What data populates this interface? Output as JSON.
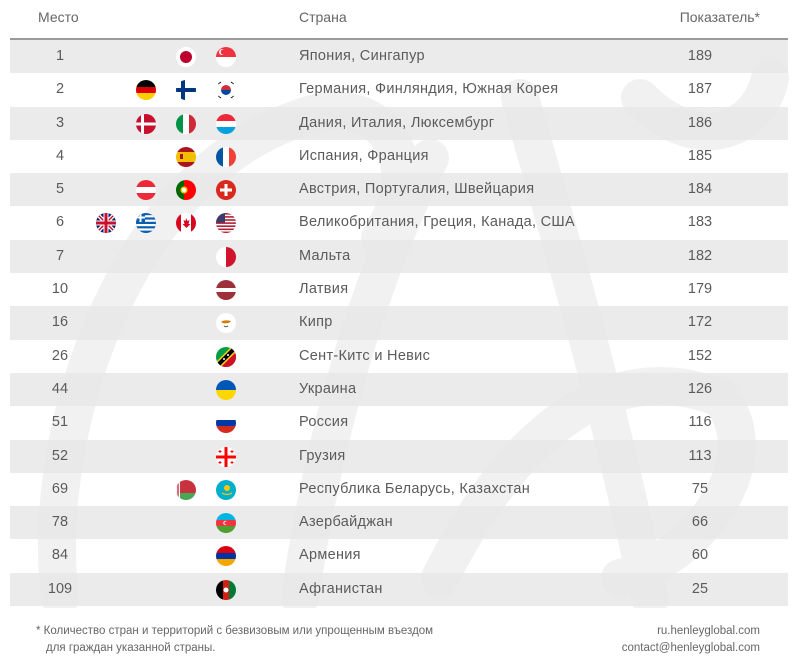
{
  "header": {
    "rank": "Место",
    "country": "Страна",
    "score": "Показатель*"
  },
  "rows": [
    {
      "rank": "1",
      "country": "Япония, Сингапур",
      "score": "189",
      "flags": [
        "japan-flag",
        "singapore-flag"
      ]
    },
    {
      "rank": "2",
      "country": "Германия, Финляндия, Южная Корея",
      "score": "187",
      "flags": [
        "germany-flag",
        "finland-flag",
        "south-korea-flag"
      ]
    },
    {
      "rank": "3",
      "country": "Дания, Италия, Люксембург",
      "score": "186",
      "flags": [
        "denmark-flag",
        "italy-flag",
        "luxembourg-flag"
      ]
    },
    {
      "rank": "4",
      "country": "Испания, Франция",
      "score": "185",
      "flags": [
        "spain-flag",
        "france-flag"
      ]
    },
    {
      "rank": "5",
      "country": "Австрия, Португалия, Швейцария",
      "score": "184",
      "flags": [
        "austria-flag",
        "portugal-flag",
        "switzerland-flag"
      ]
    },
    {
      "rank": "6",
      "country": "Великобритания, Греция, Канада, США",
      "score": "183",
      "flags": [
        "uk-flag",
        "greece-flag",
        "canada-flag",
        "usa-flag"
      ]
    },
    {
      "rank": "7",
      "country": "Мальта",
      "score": "182",
      "flags": [
        "malta-flag"
      ]
    },
    {
      "rank": "10",
      "country": "Латвия",
      "score": "179",
      "flags": [
        "latvia-flag"
      ]
    },
    {
      "rank": "16",
      "country": "Кипр",
      "score": "172",
      "flags": [
        "cyprus-flag"
      ]
    },
    {
      "rank": "26",
      "country": "Сент-Китс и Невис",
      "score": "152",
      "flags": [
        "saint-kitts-nevis-flag"
      ]
    },
    {
      "rank": "44",
      "country": "Украина",
      "score": "126",
      "flags": [
        "ukraine-flag"
      ]
    },
    {
      "rank": "51",
      "country": "Россия",
      "score": "116",
      "flags": [
        "russia-flag"
      ]
    },
    {
      "rank": "52",
      "country": "Грузия",
      "score": "113",
      "flags": [
        "georgia-flag"
      ]
    },
    {
      "rank": "69",
      "country": "Республика Беларусь, Казахстан",
      "score": "75",
      "flags": [
        "belarus-flag",
        "kazakhstan-flag"
      ]
    },
    {
      "rank": "78",
      "country": "Азербайджан",
      "score": "66",
      "flags": [
        "azerbaijan-flag"
      ]
    },
    {
      "rank": "84",
      "country": "Армения",
      "score": "60",
      "flags": [
        "armenia-flag"
      ]
    },
    {
      "rank": "109",
      "country": "Афганистан",
      "score": "25",
      "flags": [
        "afghanistan-flag"
      ]
    }
  ],
  "footnote": {
    "line1": "*  Количество стран и территорий с безвизовым или упрощенным въездом",
    "line2": "для граждан указанной страны."
  },
  "contacts": {
    "site": "ru.henleyglobal.com",
    "email": "contact@henleyglobal.com"
  }
}
